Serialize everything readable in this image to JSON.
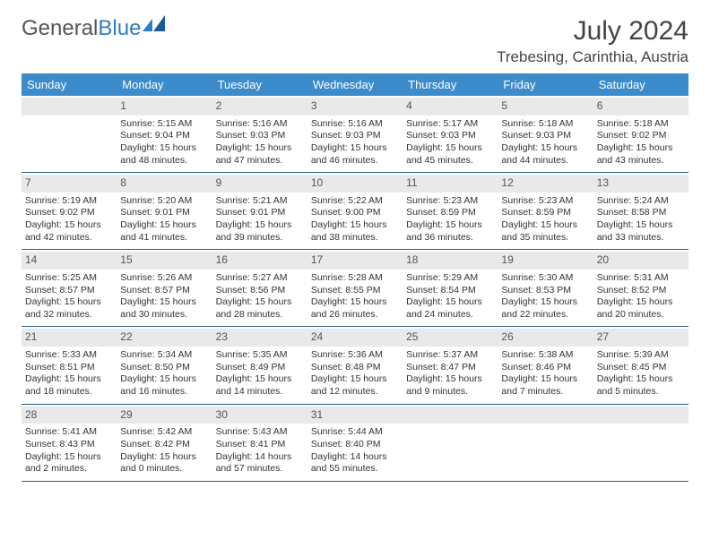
{
  "brand": {
    "part1": "General",
    "part2": "Blue"
  },
  "title": "July 2024",
  "location": "Trebesing, Carinthia, Austria",
  "colors": {
    "header_bg": "#3c8ccc",
    "header_text": "#ffffff",
    "border": "#2b5c8a",
    "daynum_bg": "#e9e9e9",
    "brand_blue": "#2e7cc4",
    "text": "#333333"
  },
  "day_names": [
    "Sunday",
    "Monday",
    "Tuesday",
    "Wednesday",
    "Thursday",
    "Friday",
    "Saturday"
  ],
  "weeks": [
    [
      null,
      {
        "n": "1",
        "sr": "Sunrise: 5:15 AM",
        "ss": "Sunset: 9:04 PM",
        "d1": "Daylight: 15 hours",
        "d2": "and 48 minutes."
      },
      {
        "n": "2",
        "sr": "Sunrise: 5:16 AM",
        "ss": "Sunset: 9:03 PM",
        "d1": "Daylight: 15 hours",
        "d2": "and 47 minutes."
      },
      {
        "n": "3",
        "sr": "Sunrise: 5:16 AM",
        "ss": "Sunset: 9:03 PM",
        "d1": "Daylight: 15 hours",
        "d2": "and 46 minutes."
      },
      {
        "n": "4",
        "sr": "Sunrise: 5:17 AM",
        "ss": "Sunset: 9:03 PM",
        "d1": "Daylight: 15 hours",
        "d2": "and 45 minutes."
      },
      {
        "n": "5",
        "sr": "Sunrise: 5:18 AM",
        "ss": "Sunset: 9:03 PM",
        "d1": "Daylight: 15 hours",
        "d2": "and 44 minutes."
      },
      {
        "n": "6",
        "sr": "Sunrise: 5:18 AM",
        "ss": "Sunset: 9:02 PM",
        "d1": "Daylight: 15 hours",
        "d2": "and 43 minutes."
      }
    ],
    [
      {
        "n": "7",
        "sr": "Sunrise: 5:19 AM",
        "ss": "Sunset: 9:02 PM",
        "d1": "Daylight: 15 hours",
        "d2": "and 42 minutes."
      },
      {
        "n": "8",
        "sr": "Sunrise: 5:20 AM",
        "ss": "Sunset: 9:01 PM",
        "d1": "Daylight: 15 hours",
        "d2": "and 41 minutes."
      },
      {
        "n": "9",
        "sr": "Sunrise: 5:21 AM",
        "ss": "Sunset: 9:01 PM",
        "d1": "Daylight: 15 hours",
        "d2": "and 39 minutes."
      },
      {
        "n": "10",
        "sr": "Sunrise: 5:22 AM",
        "ss": "Sunset: 9:00 PM",
        "d1": "Daylight: 15 hours",
        "d2": "and 38 minutes."
      },
      {
        "n": "11",
        "sr": "Sunrise: 5:23 AM",
        "ss": "Sunset: 8:59 PM",
        "d1": "Daylight: 15 hours",
        "d2": "and 36 minutes."
      },
      {
        "n": "12",
        "sr": "Sunrise: 5:23 AM",
        "ss": "Sunset: 8:59 PM",
        "d1": "Daylight: 15 hours",
        "d2": "and 35 minutes."
      },
      {
        "n": "13",
        "sr": "Sunrise: 5:24 AM",
        "ss": "Sunset: 8:58 PM",
        "d1": "Daylight: 15 hours",
        "d2": "and 33 minutes."
      }
    ],
    [
      {
        "n": "14",
        "sr": "Sunrise: 5:25 AM",
        "ss": "Sunset: 8:57 PM",
        "d1": "Daylight: 15 hours",
        "d2": "and 32 minutes."
      },
      {
        "n": "15",
        "sr": "Sunrise: 5:26 AM",
        "ss": "Sunset: 8:57 PM",
        "d1": "Daylight: 15 hours",
        "d2": "and 30 minutes."
      },
      {
        "n": "16",
        "sr": "Sunrise: 5:27 AM",
        "ss": "Sunset: 8:56 PM",
        "d1": "Daylight: 15 hours",
        "d2": "and 28 minutes."
      },
      {
        "n": "17",
        "sr": "Sunrise: 5:28 AM",
        "ss": "Sunset: 8:55 PM",
        "d1": "Daylight: 15 hours",
        "d2": "and 26 minutes."
      },
      {
        "n": "18",
        "sr": "Sunrise: 5:29 AM",
        "ss": "Sunset: 8:54 PM",
        "d1": "Daylight: 15 hours",
        "d2": "and 24 minutes."
      },
      {
        "n": "19",
        "sr": "Sunrise: 5:30 AM",
        "ss": "Sunset: 8:53 PM",
        "d1": "Daylight: 15 hours",
        "d2": "and 22 minutes."
      },
      {
        "n": "20",
        "sr": "Sunrise: 5:31 AM",
        "ss": "Sunset: 8:52 PM",
        "d1": "Daylight: 15 hours",
        "d2": "and 20 minutes."
      }
    ],
    [
      {
        "n": "21",
        "sr": "Sunrise: 5:33 AM",
        "ss": "Sunset: 8:51 PM",
        "d1": "Daylight: 15 hours",
        "d2": "and 18 minutes."
      },
      {
        "n": "22",
        "sr": "Sunrise: 5:34 AM",
        "ss": "Sunset: 8:50 PM",
        "d1": "Daylight: 15 hours",
        "d2": "and 16 minutes."
      },
      {
        "n": "23",
        "sr": "Sunrise: 5:35 AM",
        "ss": "Sunset: 8:49 PM",
        "d1": "Daylight: 15 hours",
        "d2": "and 14 minutes."
      },
      {
        "n": "24",
        "sr": "Sunrise: 5:36 AM",
        "ss": "Sunset: 8:48 PM",
        "d1": "Daylight: 15 hours",
        "d2": "and 12 minutes."
      },
      {
        "n": "25",
        "sr": "Sunrise: 5:37 AM",
        "ss": "Sunset: 8:47 PM",
        "d1": "Daylight: 15 hours",
        "d2": "and 9 minutes."
      },
      {
        "n": "26",
        "sr": "Sunrise: 5:38 AM",
        "ss": "Sunset: 8:46 PM",
        "d1": "Daylight: 15 hours",
        "d2": "and 7 minutes."
      },
      {
        "n": "27",
        "sr": "Sunrise: 5:39 AM",
        "ss": "Sunset: 8:45 PM",
        "d1": "Daylight: 15 hours",
        "d2": "and 5 minutes."
      }
    ],
    [
      {
        "n": "28",
        "sr": "Sunrise: 5:41 AM",
        "ss": "Sunset: 8:43 PM",
        "d1": "Daylight: 15 hours",
        "d2": "and 2 minutes."
      },
      {
        "n": "29",
        "sr": "Sunrise: 5:42 AM",
        "ss": "Sunset: 8:42 PM",
        "d1": "Daylight: 15 hours",
        "d2": "and 0 minutes."
      },
      {
        "n": "30",
        "sr": "Sunrise: 5:43 AM",
        "ss": "Sunset: 8:41 PM",
        "d1": "Daylight: 14 hours",
        "d2": "and 57 minutes."
      },
      {
        "n": "31",
        "sr": "Sunrise: 5:44 AM",
        "ss": "Sunset: 8:40 PM",
        "d1": "Daylight: 14 hours",
        "d2": "and 55 minutes."
      },
      null,
      null,
      null
    ]
  ]
}
